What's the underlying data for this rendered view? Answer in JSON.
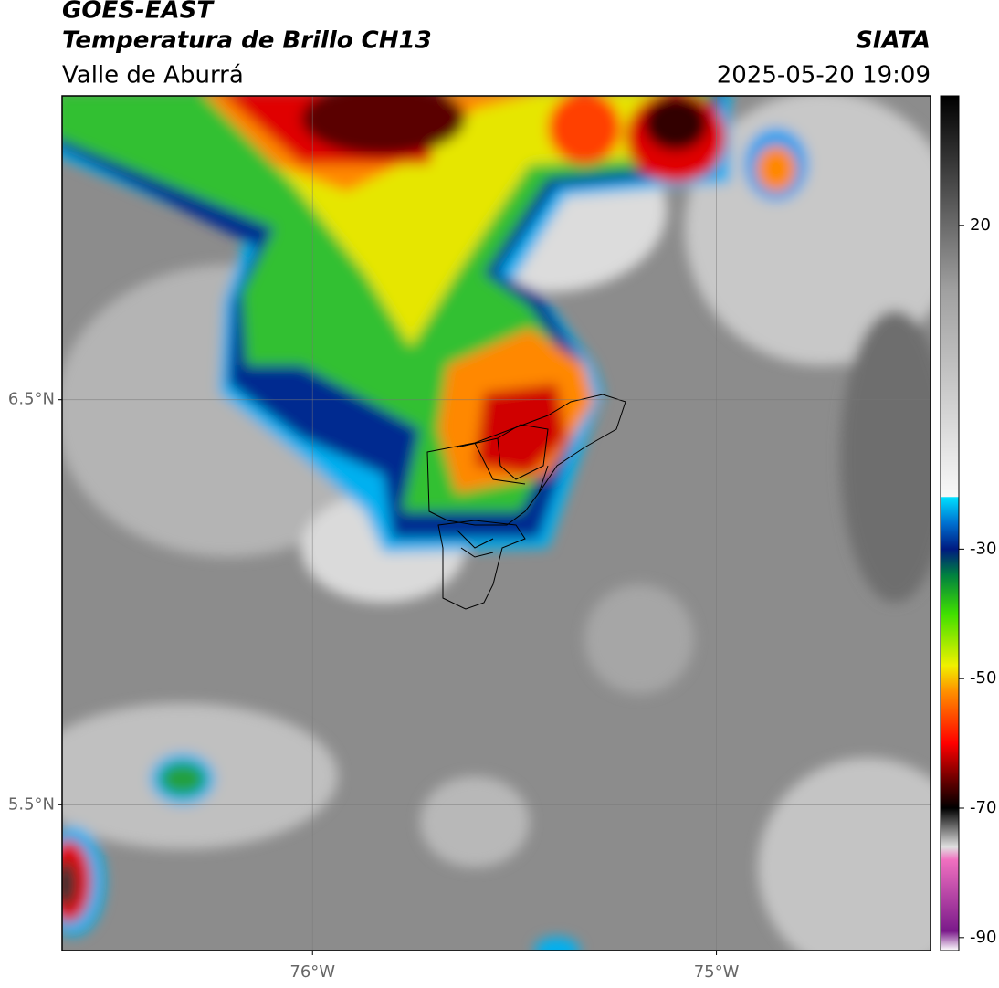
{
  "header": {
    "title": "GOES-EAST",
    "subtitle": "Temperatura de Brillo CH13",
    "source": "SIATA",
    "region": "Valle de Aburrá",
    "datetime": "2025-05-20 19:09"
  },
  "map": {
    "xlim": [
      -76.62,
      -74.47
    ],
    "ylim": [
      5.14,
      7.25
    ],
    "xticks": [
      {
        "value": -76,
        "label": "76°W"
      },
      {
        "value": -75,
        "label": "75°W"
      }
    ],
    "yticks": [
      {
        "value": 6.5,
        "label": "6.5°N"
      },
      {
        "value": 5.5,
        "label": "5.5°N"
      }
    ],
    "grid": true
  },
  "colorbar": {
    "lim": [
      -92,
      40
    ],
    "ticks": [
      20,
      -30,
      -50,
      -70,
      -90
    ],
    "stops": [
      {
        "value": -92,
        "color": "#ffffff"
      },
      {
        "value": -89,
        "color": "#7a1a8a"
      },
      {
        "value": -78,
        "color": "#f070c0"
      },
      {
        "value": -76,
        "color": "#e0e0e0"
      },
      {
        "value": -70,
        "color": "#000000"
      },
      {
        "value": -66,
        "color": "#600000"
      },
      {
        "value": -60,
        "color": "#ff0000"
      },
      {
        "value": -52,
        "color": "#ff9000"
      },
      {
        "value": -48,
        "color": "#f0f000"
      },
      {
        "value": -40,
        "color": "#40e000"
      },
      {
        "value": -34,
        "color": "#008040"
      },
      {
        "value": -30,
        "color": "#001a80"
      },
      {
        "value": -26,
        "color": "#0070d0"
      },
      {
        "value": -22,
        "color": "#00e0ff"
      },
      {
        "value": -21.9,
        "color": "#f8f8f8"
      },
      {
        "value": 10,
        "color": "#a0a0a0"
      },
      {
        "value": 40,
        "color": "#000000"
      }
    ]
  }
}
